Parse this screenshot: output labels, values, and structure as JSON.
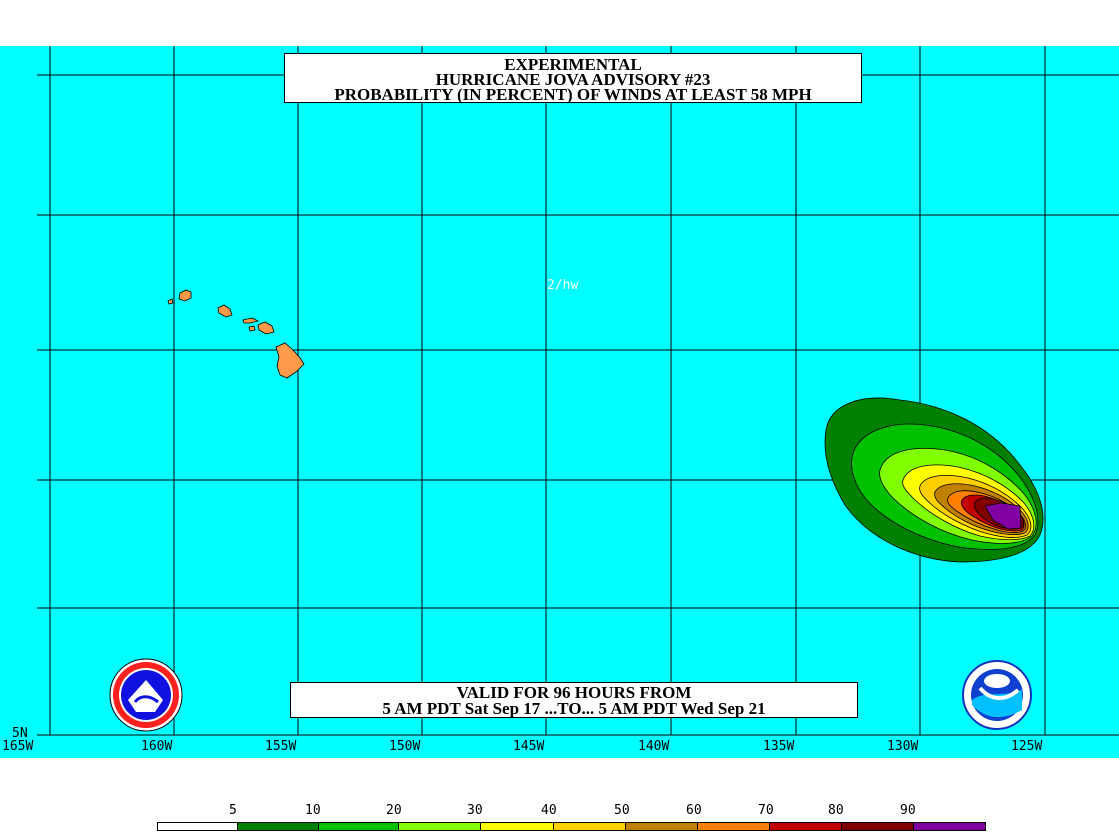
{
  "title": {
    "line1": "EXPERIMENTAL",
    "line2": "HURRICANE JOVA ADVISORY #23",
    "line3": "PROBABILITY (IN PERCENT) OF WINDS AT LEAST 58 MPH"
  },
  "valid": {
    "line1": "VALID FOR 96 HOURS FROM",
    "line2": "5 AM PDT Sat Sep 17 ...TO... 5 AM PDT Wed Sep 21"
  },
  "stamp": "2/hw",
  "axes": {
    "longitudes": [
      "165W",
      "160W",
      "155W",
      "150W",
      "145W",
      "140W",
      "135W",
      "130W",
      "125W"
    ],
    "latitude_label": "5N"
  },
  "legend": {
    "labels": [
      "5",
      "10",
      "20",
      "30",
      "40",
      "50",
      "60",
      "70",
      "80",
      "90"
    ],
    "colors": [
      "#ffffff",
      "#008000",
      "#00c000",
      "#80ff00",
      "#ffff00",
      "#ffd000",
      "#c08000",
      "#ff8000",
      "#c00000",
      "#800000",
      "#8000a0"
    ]
  },
  "colors": {
    "ocean": "#00ffff",
    "land": "#ff9a4a",
    "grid": "#000000"
  },
  "logos": {
    "left": "NATIONAL WEATHER SERVICE",
    "right": "NOAA"
  }
}
